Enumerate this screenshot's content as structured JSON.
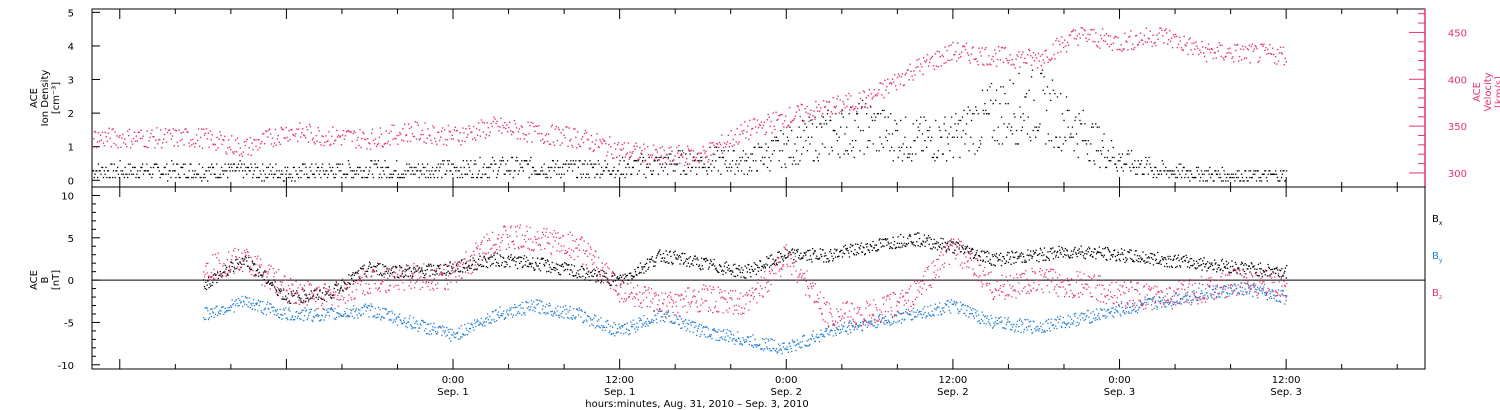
{
  "chart_data": [
    {
      "type": "scatter",
      "panel": "top",
      "ylabel_lines": [
        "ACE",
        "Ion Density",
        "[cm⁻³]"
      ],
      "ylabel_right_lines": [
        "ACE",
        "Velocity",
        "[km/s]"
      ],
      "ylim": [
        -0.2,
        5.1
      ],
      "ylim_right": [
        285,
        475
      ],
      "yticks": [
        "0",
        "1",
        "2",
        "3",
        "4",
        "5"
      ],
      "yticks_right": [
        "300",
        "350",
        "400",
        "450"
      ],
      "colors": {
        "density": "#000000",
        "velocity": "#e8336a"
      },
      "series": [
        {
          "key": "density",
          "t_hours": [
            -18,
            -15,
            -12,
            -9,
            -6,
            -3,
            0,
            3,
            6,
            9,
            12,
            15,
            18,
            21,
            24,
            27,
            30,
            33,
            36,
            39,
            42,
            45,
            48,
            51,
            54,
            57,
            60
          ],
          "values": [
            0.3,
            0.3,
            0.25,
            0.3,
            0.35,
            0.3,
            0.35,
            0.4,
            0.4,
            0.35,
            0.4,
            0.5,
            0.6,
            0.55,
            1.0,
            1.4,
            1.6,
            1.2,
            1.3,
            2.0,
            2.3,
            1.5,
            0.6,
            0.3,
            0.2,
            0.15,
            0.15
          ]
        },
        {
          "key": "velocity",
          "t_hours": [
            -18,
            -15,
            -12,
            -9,
            -6,
            -3,
            0,
            3,
            6,
            9,
            12,
            15,
            18,
            21,
            24,
            27,
            30,
            33,
            36,
            39,
            42,
            45,
            48,
            51,
            54,
            57,
            60
          ],
          "values": [
            338,
            327,
            345,
            340,
            337,
            345,
            340,
            350,
            343,
            338,
            325,
            318,
            320,
            345,
            360,
            370,
            380,
            410,
            430,
            425,
            422,
            448,
            440,
            448,
            430,
            428,
            427
          ]
        }
      ]
    },
    {
      "type": "scatter",
      "panel": "bottom",
      "ylabel_lines": [
        "ACE",
        "B",
        "[nT]"
      ],
      "ylim": [
        -10.5,
        11
      ],
      "yticks": [
        "-10",
        "-5",
        "0",
        "5",
        "10"
      ],
      "legend": [
        {
          "key": "bx",
          "base": "B",
          "sub": "x",
          "color": "#000000"
        },
        {
          "key": "by",
          "base": "B",
          "sub": "y",
          "color": "#1f7fd6"
        },
        {
          "key": "bz",
          "base": "B",
          "sub": "z",
          "color": "#e8336a"
        }
      ],
      "series": [
        {
          "key": "bx",
          "t_hours": [
            -18,
            -15,
            -12,
            -9,
            -6,
            -3,
            0,
            3,
            6,
            9,
            12,
            15,
            18,
            21,
            24,
            27,
            30,
            33,
            36,
            39,
            42,
            45,
            48,
            51,
            54,
            57,
            60
          ],
          "values": [
            -0.5,
            2.5,
            -2,
            -1.5,
            1.5,
            1,
            1.5,
            2.5,
            2,
            1,
            0,
            3,
            2,
            1,
            3,
            3,
            4,
            5,
            4,
            2.5,
            3,
            3.5,
            3,
            2.5,
            2,
            1.5,
            1
          ]
        },
        {
          "key": "by",
          "t_hours": [
            -18,
            -15,
            -12,
            -9,
            -6,
            -3,
            0,
            3,
            6,
            9,
            12,
            15,
            18,
            21,
            24,
            27,
            30,
            33,
            36,
            39,
            42,
            45,
            48,
            51,
            54,
            57,
            60
          ],
          "values": [
            -4,
            -2.5,
            -4,
            -4,
            -3.5,
            -5,
            -6.5,
            -4,
            -3,
            -4,
            -6,
            -4,
            -6,
            -7,
            -8,
            -6,
            -5,
            -4,
            -3,
            -5,
            -5.5,
            -4.5,
            -3.5,
            -2.5,
            -1.5,
            -1,
            -2
          ]
        },
        {
          "key": "bz",
          "t_hours": [
            -18,
            -15,
            -12,
            -9,
            -6,
            -3,
            0,
            3,
            6,
            9,
            12,
            15,
            18,
            21,
            24,
            27,
            30,
            33,
            36,
            39,
            42,
            45,
            48,
            51,
            54,
            57,
            60
          ],
          "values": [
            1.5,
            2.5,
            -1,
            -2,
            0,
            0.5,
            0.5,
            5,
            5,
            4,
            -1,
            -3,
            -2,
            -3,
            3,
            -4,
            -4,
            -2,
            4,
            -1,
            0,
            -0.5,
            -1.5,
            -2,
            -1,
            0,
            -0.5
          ]
        }
      ]
    }
  ],
  "xaxis": {
    "range_hours": [
      -26,
      70
    ],
    "ticks": [
      {
        "t": 0,
        "time": "0:00",
        "date": "Sep. 1"
      },
      {
        "t": 12,
        "time": "12:00",
        "date": "Sep. 1"
      },
      {
        "t": 24,
        "time": "0:00",
        "date": "Sep. 2"
      },
      {
        "t": 36,
        "time": "12:00",
        "date": "Sep. 2"
      },
      {
        "t": 48,
        "time": "0:00",
        "date": "Sep. 3"
      },
      {
        "t": 60,
        "time": "12:00",
        "date": "Sep. 3"
      }
    ],
    "label": "hours:minutes, Aug. 31, 2010 – Sep.  3, 2010"
  }
}
